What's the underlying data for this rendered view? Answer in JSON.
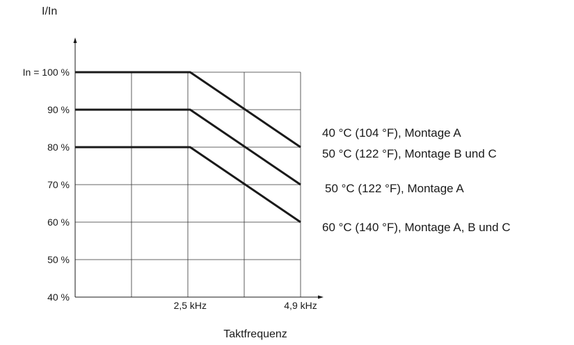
{
  "chart_data": {
    "type": "line",
    "ylabel": "I/In",
    "xlabel": "Taktfrequenz",
    "x_ticks": [
      {
        "value": 2.5,
        "label": "2,5 kHz"
      },
      {
        "value": 4.9,
        "label": "4,9 kHz"
      }
    ],
    "y_ticks": [
      {
        "value": 40,
        "label": "40 %"
      },
      {
        "value": 50,
        "label": "50 %"
      },
      {
        "value": 60,
        "label": "60 %"
      },
      {
        "value": 70,
        "label": "70 %"
      },
      {
        "value": 80,
        "label": "80 %"
      },
      {
        "value": 90,
        "label": "90 %"
      },
      {
        "value": 100,
        "label": "In = 100 %"
      }
    ],
    "xlim": [
      0,
      4.9
    ],
    "ylim": [
      40,
      100
    ],
    "grid": true,
    "series": [
      {
        "name": "40 °C (104 °F), Montage A",
        "x": [
          0,
          2.5,
          4.9
        ],
        "values": [
          100,
          100,
          80
        ]
      },
      {
        "name": "50 °C (122 °F), Montage B und C",
        "x": [
          0,
          2.5,
          4.9
        ],
        "values": [
          100,
          100,
          80
        ]
      },
      {
        "name": "50 °C (122 °F), Montage A",
        "x": [
          0,
          2.5,
          4.9
        ],
        "values": [
          90,
          90,
          70
        ]
      },
      {
        "name": "60 °C (140 °F), Montage A, B und C",
        "x": [
          0,
          2.5,
          4.9
        ],
        "values": [
          80,
          80,
          60
        ]
      }
    ],
    "series_color": "#1a1a1a",
    "grid_color": "#333333"
  }
}
